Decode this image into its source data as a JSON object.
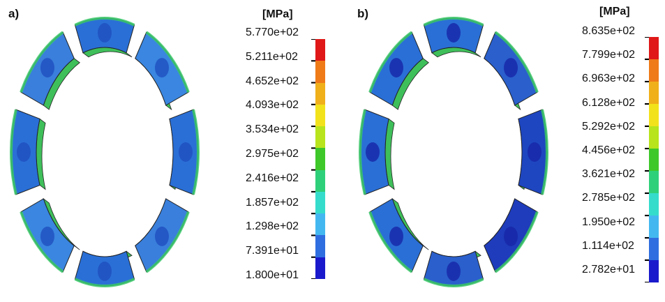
{
  "panels": [
    {
      "label": "a)",
      "unit": "[MPa]",
      "legend_values": [
        "5.770e+02",
        "5.211e+02",
        "4.652e+02",
        "4.093e+02",
        "3.534e+02",
        "2.975e+02",
        "2.416e+02",
        "1.857e+02",
        "1.298e+02",
        "7.391e+01",
        "1.800e+01"
      ]
    },
    {
      "label": "b)",
      "unit": "[MPa]",
      "legend_values": [
        "8.635e+02",
        "7.799e+02",
        "6.963e+02",
        "6.128e+02",
        "5.292e+02",
        "4.456e+02",
        "3.621e+02",
        "2.785e+02",
        "1.950e+02",
        "1.114e+02",
        "2.782e+01"
      ]
    }
  ],
  "colorbar_colors": [
    "#e01818",
    "#ef7a18",
    "#f0b01a",
    "#f2e21c",
    "#b7e41c",
    "#3ec82a",
    "#2fd07a",
    "#35dccc",
    "#43b8f0",
    "#2f6ee0",
    "#1a1acc"
  ]
}
